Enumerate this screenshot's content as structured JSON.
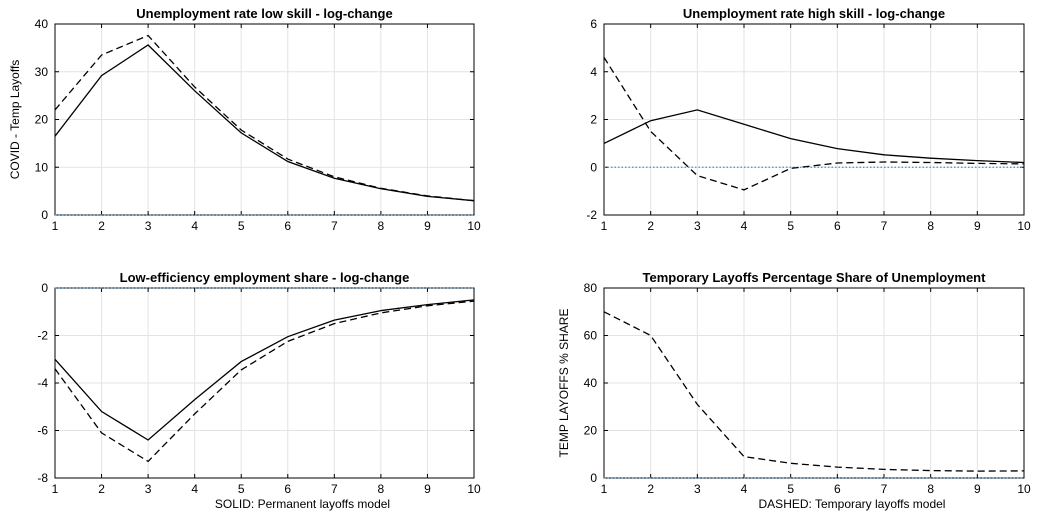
{
  "chart_data": [
    {
      "type": "line",
      "title": "Unemployment rate low skill  - log-change",
      "xlabel": "",
      "ylabel": "COVID - Temp Layoffs",
      "xlim": [
        1,
        10
      ],
      "ylim": [
        0,
        40
      ],
      "xticks": [
        1,
        2,
        3,
        4,
        5,
        6,
        7,
        8,
        9,
        10
      ],
      "yticks": [
        0,
        10,
        20,
        30,
        40
      ],
      "grid": true,
      "zero_line": 0,
      "x": [
        1,
        2,
        3,
        4,
        5,
        6,
        7,
        8,
        9,
        10
      ],
      "series": [
        {
          "style": "solid",
          "values": [
            16.5,
            29.2,
            35.6,
            26.0,
            17.2,
            11.2,
            7.7,
            5.5,
            3.9,
            3.0
          ]
        },
        {
          "style": "dashed",
          "values": [
            22.0,
            33.5,
            37.6,
            26.8,
            17.8,
            11.7,
            8.0,
            5.6,
            4.0,
            3.0
          ]
        }
      ]
    },
    {
      "type": "line",
      "title": "Unemployment rate high skill  - log-change",
      "xlabel": "",
      "ylabel": "",
      "xlim": [
        1,
        10
      ],
      "ylim": [
        -2,
        6
      ],
      "xticks": [
        1,
        2,
        3,
        4,
        5,
        6,
        7,
        8,
        9,
        10
      ],
      "yticks": [
        -2,
        0,
        2,
        4,
        6
      ],
      "grid": true,
      "zero_line": 0,
      "x": [
        1,
        2,
        3,
        4,
        5,
        6,
        7,
        8,
        9,
        10
      ],
      "series": [
        {
          "style": "solid",
          "values": [
            1.0,
            1.95,
            2.4,
            1.8,
            1.2,
            0.78,
            0.52,
            0.38,
            0.28,
            0.2
          ]
        },
        {
          "style": "dashed",
          "values": [
            4.6,
            1.5,
            -0.35,
            -0.95,
            -0.05,
            0.18,
            0.22,
            0.2,
            0.16,
            0.14
          ]
        }
      ]
    },
    {
      "type": "line",
      "title": "Low-efficiency employment share - log-change",
      "xlabel": "SOLID: Permanent layoffs model",
      "ylabel": "",
      "xlim": [
        1,
        10
      ],
      "ylim": [
        -8,
        0
      ],
      "xticks": [
        1,
        2,
        3,
        4,
        5,
        6,
        7,
        8,
        9,
        10
      ],
      "yticks": [
        -8,
        -6,
        -4,
        -2,
        0
      ],
      "grid": true,
      "zero_line": 0,
      "x": [
        1,
        2,
        3,
        4,
        5,
        6,
        7,
        8,
        9,
        10
      ],
      "series": [
        {
          "style": "solid",
          "values": [
            -3.0,
            -5.2,
            -6.4,
            -4.7,
            -3.1,
            -2.05,
            -1.35,
            -0.95,
            -0.7,
            -0.5
          ]
        },
        {
          "style": "dashed",
          "values": [
            -3.4,
            -6.1,
            -7.3,
            -5.3,
            -3.45,
            -2.25,
            -1.5,
            -1.05,
            -0.75,
            -0.55
          ]
        }
      ]
    },
    {
      "type": "line",
      "title": "Temporary Layoffs Percentage Share of Unemployment",
      "xlabel": "DASHED: Temporary layoffs model",
      "ylabel": "TEMP LAYOFFS % SHARE",
      "xlim": [
        1,
        10
      ],
      "ylim": [
        0,
        80
      ],
      "xticks": [
        1,
        2,
        3,
        4,
        5,
        6,
        7,
        8,
        9,
        10
      ],
      "yticks": [
        0,
        20,
        40,
        60,
        80
      ],
      "grid": true,
      "zero_line": 0,
      "x": [
        1,
        2,
        3,
        4,
        5,
        6,
        7,
        8,
        9,
        10
      ],
      "series": [
        {
          "style": "dashed",
          "values": [
            70.0,
            60.0,
            31.0,
            9.0,
            6.2,
            4.6,
            3.6,
            3.1,
            2.9,
            3.0
          ]
        }
      ]
    }
  ]
}
